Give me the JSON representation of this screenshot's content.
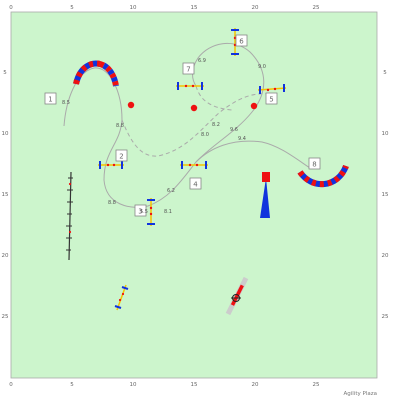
{
  "grid": {
    "x_ticks": [
      "0",
      "5",
      "10",
      "15",
      "20",
      "25"
    ],
    "y_ticks": [
      "5",
      "10",
      "15",
      "20",
      "25"
    ],
    "field_color": "#ccf5cc",
    "frame_color": "#aaaaaa"
  },
  "obstacles": [
    {
      "number": "1",
      "type": "tunnel"
    },
    {
      "number": "2",
      "type": "jump"
    },
    {
      "number": "3",
      "type": "jump"
    },
    {
      "number": "4",
      "type": "jump"
    },
    {
      "number": "5",
      "type": "jump"
    },
    {
      "number": "6",
      "type": "jump"
    },
    {
      "number": "7",
      "type": "jump"
    },
    {
      "number": "8",
      "type": "tunnel"
    }
  ],
  "distances": [
    "8.5",
    "8.8",
    "8.8",
    "5.5",
    "6.2",
    "6.9",
    "9.0",
    "8.2",
    "8.0",
    "9.6",
    "9.4",
    "8.1"
  ],
  "colors": {
    "red": "#ee1111",
    "blue": "#1133dd",
    "path": "#aaaaaa"
  },
  "brand": "Agility Plaza"
}
